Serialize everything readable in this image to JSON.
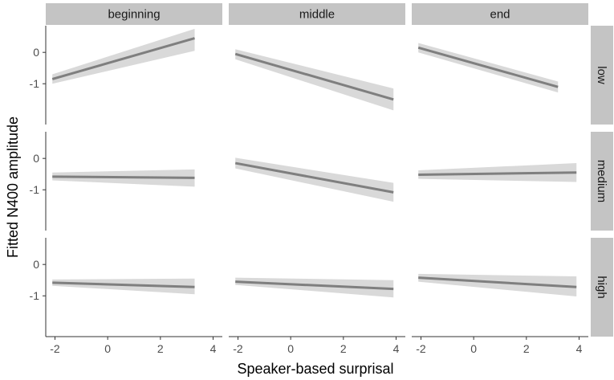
{
  "chart_data": {
    "type": "line",
    "xlabel": "Speaker-based surprisal",
    "ylabel": "Fitted N400 amplitude",
    "xlim": [
      -2.35,
      4.35
    ],
    "ylim": [
      -2.3,
      0.85
    ],
    "x_ticks": [
      -2,
      0,
      2,
      4
    ],
    "y_ticks": [
      0,
      -1
    ],
    "columns": [
      "beginning",
      "middle",
      "end"
    ],
    "rows": [
      "low",
      "medium",
      "high"
    ],
    "colors": {
      "line": "#7f7f7f",
      "ribbon": "#d9d9d9",
      "strip": "#c4c4c4",
      "axis": "#333333"
    },
    "grid": false,
    "panels": [
      {
        "column": "beginning",
        "row": "low",
        "x": [
          -2.1,
          3.3
        ],
        "fit": [
          -0.85,
          0.45
        ],
        "ci_lower": [
          -1.0,
          0.05
        ],
        "ci_upper": [
          -0.7,
          0.75
        ]
      },
      {
        "column": "middle",
        "row": "low",
        "x": [
          -2.1,
          3.9
        ],
        "fit": [
          -0.05,
          -1.5
        ],
        "ci_lower": [
          -0.22,
          -1.85
        ],
        "ci_upper": [
          0.1,
          -1.15
        ]
      },
      {
        "column": "end",
        "row": "low",
        "x": [
          -2.1,
          3.2
        ],
        "fit": [
          0.15,
          -1.1
        ],
        "ci_lower": [
          0.0,
          -1.28
        ],
        "ci_upper": [
          0.3,
          -0.93
        ]
      },
      {
        "column": "beginning",
        "row": "medium",
        "x": [
          -2.1,
          3.3
        ],
        "fit": [
          -0.58,
          -0.62
        ],
        "ci_lower": [
          -0.7,
          -0.9
        ],
        "ci_upper": [
          -0.45,
          -0.35
        ]
      },
      {
        "column": "middle",
        "row": "medium",
        "x": [
          -2.1,
          3.9
        ],
        "fit": [
          -0.15,
          -1.08
        ],
        "ci_lower": [
          -0.32,
          -1.38
        ],
        "ci_upper": [
          0.02,
          -0.78
        ]
      },
      {
        "column": "end",
        "row": "medium",
        "x": [
          -2.1,
          3.9
        ],
        "fit": [
          -0.52,
          -0.45
        ],
        "ci_lower": [
          -0.65,
          -0.75
        ],
        "ci_upper": [
          -0.38,
          -0.15
        ]
      },
      {
        "column": "beginning",
        "row": "high",
        "x": [
          -2.1,
          3.3
        ],
        "fit": [
          -0.58,
          -0.72
        ],
        "ci_lower": [
          -0.68,
          -0.95
        ],
        "ci_upper": [
          -0.48,
          -0.45
        ]
      },
      {
        "column": "middle",
        "row": "high",
        "x": [
          -2.1,
          3.9
        ],
        "fit": [
          -0.55,
          -0.78
        ],
        "ci_lower": [
          -0.65,
          -1.05
        ],
        "ci_upper": [
          -0.42,
          -0.5
        ]
      },
      {
        "column": "end",
        "row": "high",
        "x": [
          -2.1,
          3.9
        ],
        "fit": [
          -0.42,
          -0.72
        ],
        "ci_lower": [
          -0.55,
          -1.02
        ],
        "ci_upper": [
          -0.3,
          -0.38
        ]
      }
    ]
  }
}
